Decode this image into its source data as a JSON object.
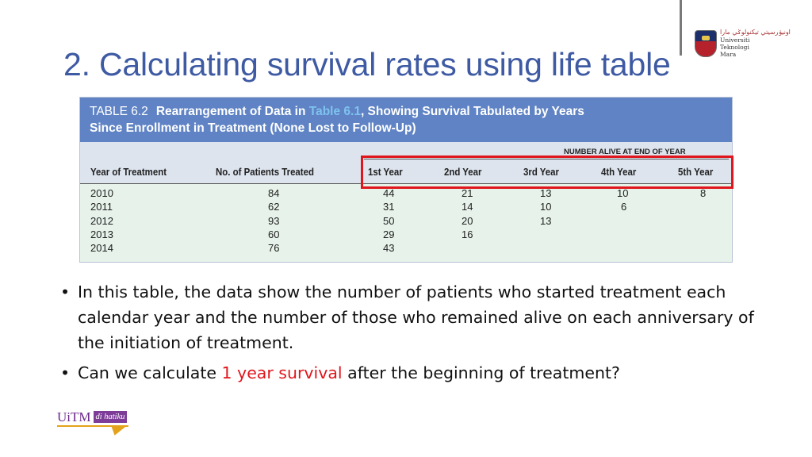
{
  "logo": {
    "jawi": "اونيۏرسيتي تيكنولوݢي مارا",
    "name_lines": [
      "Universiti",
      "Teknologi",
      "Mara"
    ]
  },
  "slide": {
    "title": "2. Calculating survival rates using life table"
  },
  "table": {
    "label": "TABLE 6.2",
    "caption_part1": "Rearrangement of Data in ",
    "caption_ref": "Table 6.1",
    "caption_part2": ", Showing Survival Tabulated by Years",
    "caption_line2": "Since Enrollment in Treatment (None Lost to Follow-Up)",
    "group_header": "NUMBER ALIVE AT END OF YEAR",
    "columns": [
      "Year of Treatment",
      "No. of Patients Treated",
      "1st Year",
      "2nd Year",
      "3rd Year",
      "4th Year",
      "5th Year"
    ],
    "rows": [
      [
        "2010",
        "84",
        "44",
        "21",
        "13",
        "10",
        "8"
      ],
      [
        "2011",
        "62",
        "31",
        "14",
        "10",
        "6",
        ""
      ],
      [
        "2012",
        "93",
        "50",
        "20",
        "13",
        "",
        ""
      ],
      [
        "2013",
        "60",
        "29",
        "16",
        "",
        "",
        ""
      ],
      [
        "2014",
        "76",
        "43",
        "",
        "",
        "",
        ""
      ]
    ],
    "highlight_color": "#e0161c"
  },
  "bullets": [
    {
      "text": "In this table, the data show the number of patients who started treatment each calendar year and the number of those who remained alive on each anniversary of the initiation of treatment."
    },
    {
      "before": "Can we calculate ",
      "highlight": "1 year survival",
      "after": " after the beginning of treatment?"
    }
  ],
  "footer_logo": {
    "main": "UiTM",
    "tag": "di hatiku"
  }
}
